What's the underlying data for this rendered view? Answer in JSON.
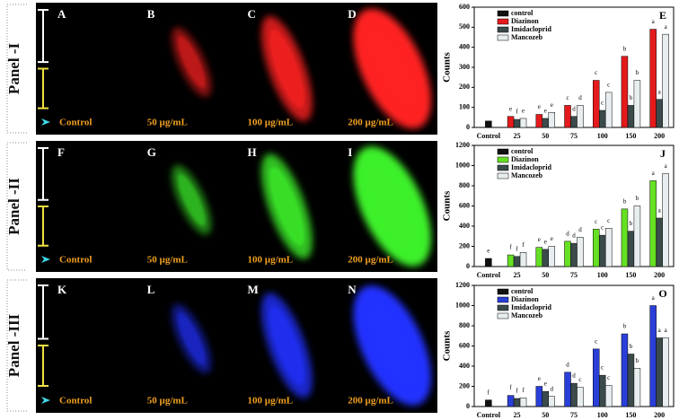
{
  "panels": [
    {
      "title": "Panel -I",
      "images": [
        {
          "letter": "A",
          "label": "Control"
        },
        {
          "letter": "B",
          "label": "50 µg/mL"
        },
        {
          "letter": "C",
          "label": "100 µg/mL"
        },
        {
          "letter": "D",
          "label": "200 µg/mL"
        }
      ]
    },
    {
      "title": "Panel -II",
      "images": [
        {
          "letter": "F",
          "label": "Control"
        },
        {
          "letter": "G",
          "label": "50 µg/mL"
        },
        {
          "letter": "H",
          "label": "100 µg/mL"
        },
        {
          "letter": "I",
          "label": "200 µg/mL"
        }
      ]
    },
    {
      "title": "Panel -III",
      "images": [
        {
          "letter": "K",
          "label": "Control"
        },
        {
          "letter": "L",
          "label": "50 µg/mL"
        },
        {
          "letter": "M",
          "label": "100 µg/mL"
        },
        {
          "letter": "N",
          "label": "200 µg/mL"
        }
      ]
    }
  ],
  "chart_data": [
    {
      "type": "bar",
      "title": "E",
      "ylabel": "Counts",
      "categories": [
        "Control",
        "25",
        "50",
        "75",
        "100",
        "150",
        "200"
      ],
      "ylim": [
        0,
        600
      ],
      "yticks": [
        0,
        100,
        200,
        300,
        400,
        500,
        600
      ],
      "legend": "upper left",
      "series": [
        {
          "name": "control",
          "color": "#111111",
          "values": [
            32,
            null,
            null,
            null,
            null,
            null,
            null
          ],
          "letters": [
            null,
            null,
            null,
            null,
            null,
            null,
            null
          ]
        },
        {
          "name": "Diazinon",
          "color": "#e41a1c",
          "values": [
            null,
            55,
            65,
            110,
            235,
            355,
            490
          ],
          "letters": [
            null,
            "e",
            "e",
            "c",
            "c",
            "b",
            "a"
          ]
        },
        {
          "name": "Imidacloprid",
          "color": "#3b4b4b",
          "values": [
            null,
            40,
            45,
            55,
            85,
            110,
            140
          ],
          "letters": [
            null,
            "f",
            "e",
            "d",
            "c",
            "b",
            "a"
          ]
        },
        {
          "name": "Mancozeb",
          "color": "#e8eef0",
          "values": [
            null,
            45,
            75,
            110,
            175,
            235,
            465
          ],
          "letters": [
            null,
            "e",
            "e",
            "d",
            "c",
            "b",
            "a"
          ]
        }
      ]
    },
    {
      "type": "bar",
      "title": "J",
      "ylabel": "Counts",
      "categories": [
        "Control",
        "25",
        "50",
        "75",
        "100",
        "150",
        "200"
      ],
      "ylim": [
        0,
        1200
      ],
      "yticks": [
        0,
        200,
        400,
        600,
        800,
        1000,
        1200
      ],
      "legend": "upper left",
      "series": [
        {
          "name": "control",
          "color": "#111111",
          "values": [
            80,
            null,
            null,
            null,
            null,
            null,
            null
          ],
          "letters": [
            "e",
            null,
            null,
            null,
            null,
            null,
            null
          ]
        },
        {
          "name": "Diazinon",
          "color": "#66e022",
          "values": [
            null,
            115,
            190,
            250,
            370,
            570,
            850
          ],
          "letters": [
            null,
            "f",
            "e",
            "d",
            "c",
            "b",
            "a"
          ]
        },
        {
          "name": "Imidacloprid",
          "color": "#3b4b4b",
          "values": [
            null,
            100,
            170,
            230,
            310,
            350,
            480
          ],
          "letters": [
            null,
            "f",
            "e",
            "d",
            "c",
            "b",
            "a"
          ]
        },
        {
          "name": "Mancozeb",
          "color": "#e8eef0",
          "values": [
            null,
            140,
            200,
            290,
            380,
            600,
            920
          ],
          "letters": [
            null,
            "f",
            "e",
            "d",
            "c",
            "b",
            "a"
          ]
        }
      ]
    },
    {
      "type": "bar",
      "title": "O",
      "ylabel": "Counts",
      "categories": [
        "Control",
        "25",
        "50",
        "75",
        "100",
        "150",
        "200"
      ],
      "ylim": [
        0,
        1200
      ],
      "yticks": [
        0,
        200,
        400,
        600,
        800,
        1000,
        1200
      ],
      "legend": "upper left",
      "series": [
        {
          "name": "control",
          "color": "#111111",
          "values": [
            65,
            null,
            null,
            null,
            null,
            null,
            null
          ],
          "letters": [
            "f",
            null,
            null,
            null,
            null,
            null,
            null
          ]
        },
        {
          "name": "Diazinon",
          "color": "#2a3fd8",
          "values": [
            null,
            110,
            200,
            340,
            570,
            720,
            1000
          ],
          "letters": [
            null,
            "f",
            "e",
            "d",
            "c",
            "b",
            "a"
          ]
        },
        {
          "name": "Imidacloprid",
          "color": "#3b4b4b",
          "values": [
            null,
            80,
            150,
            230,
            310,
            520,
            680
          ],
          "letters": [
            null,
            "f",
            "e",
            "d",
            "c",
            "b",
            "a"
          ]
        },
        {
          "name": "Mancozeb",
          "color": "#e8eef0",
          "values": [
            null,
            85,
            100,
            190,
            210,
            380,
            680
          ],
          "letters": [
            null,
            "f",
            "d",
            "c",
            "c",
            "b",
            "a"
          ]
        }
      ]
    }
  ]
}
